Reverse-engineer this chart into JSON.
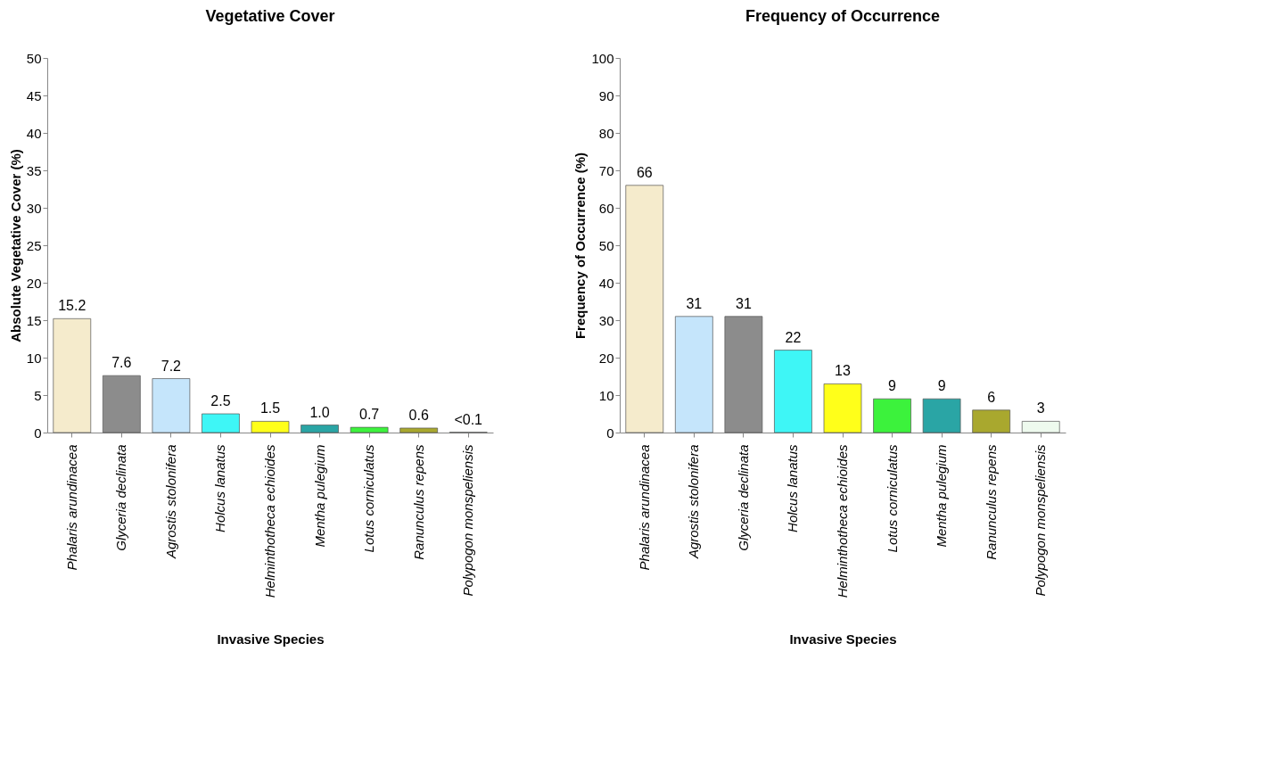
{
  "chart_data": [
    {
      "type": "bar",
      "title": "Vegetative Cover",
      "xlabel": "Invasive Species",
      "ylabel": "Absolute Vegetative Cover (%)",
      "categories": [
        "Phalaris arundinacea",
        "Glyceria declinata",
        "Agrostis stolonifera",
        "Holcus lanatus",
        "Helminthotheca echioides",
        "Mentha pulegium",
        "Lotus corniculatus",
        "Ranunculus repens",
        "Polypogon monspeliensis"
      ],
      "values": [
        15.2,
        7.6,
        7.2,
        2.5,
        1.5,
        1.0,
        0.7,
        0.6,
        0.05
      ],
      "value_labels": [
        "15.2",
        "7.6",
        "7.2",
        "2.5",
        "1.5",
        "1.0",
        "0.7",
        "0.6",
        "<0.1"
      ],
      "colors": [
        "#f5ebcc",
        "#8c8c8c",
        "#c5e5fb",
        "#3ef6f6",
        "#ffff1a",
        "#2aa5a5",
        "#3cf23c",
        "#a9a82e",
        "#eefaee"
      ],
      "ylim": [
        0,
        50
      ],
      "yticks": [
        0,
        5,
        10,
        15,
        20,
        25,
        30,
        35,
        40,
        45,
        50
      ],
      "grid": false,
      "legend": false
    },
    {
      "type": "bar",
      "title": "Frequency of Occurrence",
      "xlabel": "Invasive Species",
      "ylabel": "Frequency of Occurrence (%)",
      "categories": [
        "Phalaris arundinacea",
        "Agrostis stolonifera",
        "Glyceria declinata",
        "Holcus lanatus",
        "Helminthotheca echioides",
        "Lotus corniculatus",
        "Mentha pulegium",
        "Ranunculus repens",
        "Polypogon monspeliensis"
      ],
      "values": [
        66,
        31,
        31,
        22,
        13,
        9,
        9,
        6,
        3
      ],
      "data_labels": true,
      "colors": [
        "#f5ebcc",
        "#c5e5fb",
        "#8c8c8c",
        "#3ef6f6",
        "#ffff1a",
        "#3cf23c",
        "#2aa5a5",
        "#a9a82e",
        "#eefaee"
      ],
      "ylim": [
        0,
        100
      ],
      "yticks": [
        0,
        10,
        20,
        30,
        40,
        50,
        60,
        70,
        80,
        90,
        100
      ],
      "grid": false,
      "legend": false
    }
  ]
}
